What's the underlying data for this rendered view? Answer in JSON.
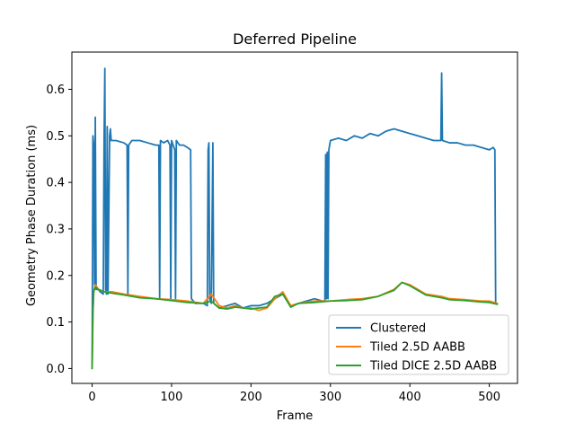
{
  "chart_data": {
    "type": "line",
    "title": "Deferred Pipeline",
    "xlabel": "Frame",
    "ylabel": "Geometry Phase Duration (ms)",
    "xlim": [
      -25.5,
      535.5
    ],
    "ylim": [
      -0.032,
      0.68
    ],
    "xticks": [
      0,
      100,
      200,
      300,
      400,
      500
    ],
    "yticks": [
      0.0,
      0.1,
      0.2,
      0.3,
      0.4,
      0.5,
      0.6
    ],
    "xtick_labels": [
      "0",
      "100",
      "200",
      "300",
      "400",
      "500"
    ],
    "ytick_labels": [
      "0.0",
      "0.1",
      "0.2",
      "0.3",
      "0.4",
      "0.5",
      "0.6"
    ],
    "grid": false,
    "legend_position": "lower right",
    "colors": {
      "Clustered": "#1f77b4",
      "Tiled 2.5D AABB": "#ff7f0e",
      "Tiled DICE 2.5D AABB": "#2ca02c"
    },
    "series": [
      {
        "name": "Clustered",
        "points": [
          [
            0,
            0.0
          ],
          [
            1,
            0.5
          ],
          [
            2,
            0.48
          ],
          [
            3,
            0.18
          ],
          [
            4,
            0.54
          ],
          [
            5,
            0.17
          ],
          [
            8,
            0.17
          ],
          [
            10,
            0.165
          ],
          [
            14,
            0.16
          ],
          [
            15,
            0.48
          ],
          [
            16,
            0.645
          ],
          [
            17,
            0.17
          ],
          [
            18,
            0.16
          ],
          [
            19,
            0.52
          ],
          [
            20,
            0.16
          ],
          [
            22,
            0.5
          ],
          [
            23,
            0.515
          ],
          [
            24,
            0.49
          ],
          [
            30,
            0.49
          ],
          [
            40,
            0.485
          ],
          [
            44,
            0.48
          ],
          [
            45,
            0.16
          ],
          [
            46,
            0.48
          ],
          [
            50,
            0.49
          ],
          [
            60,
            0.49
          ],
          [
            70,
            0.485
          ],
          [
            80,
            0.48
          ],
          [
            84,
            0.48
          ],
          [
            85,
            0.15
          ],
          [
            86,
            0.49
          ],
          [
            90,
            0.485
          ],
          [
            95,
            0.49
          ],
          [
            98,
            0.48
          ],
          [
            99,
            0.15
          ],
          [
            100,
            0.49
          ],
          [
            104,
            0.47
          ],
          [
            105,
            0.15
          ],
          [
            106,
            0.49
          ],
          [
            110,
            0.48
          ],
          [
            115,
            0.48
          ],
          [
            120,
            0.475
          ],
          [
            124,
            0.47
          ],
          [
            125,
            0.15
          ],
          [
            130,
            0.14
          ],
          [
            140,
            0.14
          ],
          [
            145,
            0.135
          ],
          [
            146,
            0.47
          ],
          [
            147,
            0.485
          ],
          [
            148,
            0.15
          ],
          [
            150,
            0.14
          ],
          [
            152,
            0.485
          ],
          [
            153,
            0.14
          ],
          [
            160,
            0.13
          ],
          [
            170,
            0.135
          ],
          [
            180,
            0.14
          ],
          [
            190,
            0.13
          ],
          [
            200,
            0.135
          ],
          [
            210,
            0.135
          ],
          [
            220,
            0.14
          ],
          [
            230,
            0.15
          ],
          [
            240,
            0.16
          ],
          [
            250,
            0.135
          ],
          [
            260,
            0.14
          ],
          [
            270,
            0.145
          ],
          [
            280,
            0.15
          ],
          [
            290,
            0.145
          ],
          [
            293,
            0.145
          ],
          [
            294,
            0.46
          ],
          [
            295,
            0.15
          ],
          [
            296,
            0.465
          ],
          [
            297,
            0.15
          ],
          [
            298,
            0.47
          ],
          [
            300,
            0.49
          ],
          [
            310,
            0.495
          ],
          [
            320,
            0.49
          ],
          [
            330,
            0.5
          ],
          [
            340,
            0.495
          ],
          [
            350,
            0.505
          ],
          [
            360,
            0.5
          ],
          [
            370,
            0.51
          ],
          [
            380,
            0.515
          ],
          [
            390,
            0.51
          ],
          [
            400,
            0.505
          ],
          [
            410,
            0.5
          ],
          [
            420,
            0.495
          ],
          [
            430,
            0.49
          ],
          [
            439,
            0.49
          ],
          [
            440,
            0.635
          ],
          [
            441,
            0.49
          ],
          [
            450,
            0.485
          ],
          [
            460,
            0.485
          ],
          [
            470,
            0.48
          ],
          [
            480,
            0.48
          ],
          [
            490,
            0.475
          ],
          [
            500,
            0.47
          ],
          [
            505,
            0.475
          ],
          [
            507,
            0.47
          ],
          [
            508,
            0.14
          ],
          [
            510,
            0.14
          ]
        ]
      },
      {
        "name": "Tiled 2.5D AABB",
        "points": [
          [
            0,
            0.0
          ],
          [
            1,
            0.12
          ],
          [
            2,
            0.165
          ],
          [
            4,
            0.18
          ],
          [
            8,
            0.17
          ],
          [
            15,
            0.165
          ],
          [
            25,
            0.165
          ],
          [
            40,
            0.16
          ],
          [
            60,
            0.155
          ],
          [
            80,
            0.15
          ],
          [
            100,
            0.148
          ],
          [
            120,
            0.145
          ],
          [
            140,
            0.14
          ],
          [
            150,
            0.16
          ],
          [
            160,
            0.135
          ],
          [
            170,
            0.13
          ],
          [
            180,
            0.135
          ],
          [
            190,
            0.13
          ],
          [
            200,
            0.13
          ],
          [
            210,
            0.125
          ],
          [
            220,
            0.13
          ],
          [
            230,
            0.15
          ],
          [
            240,
            0.165
          ],
          [
            250,
            0.135
          ],
          [
            260,
            0.14
          ],
          [
            280,
            0.145
          ],
          [
            300,
            0.145
          ],
          [
            320,
            0.148
          ],
          [
            340,
            0.15
          ],
          [
            360,
            0.155
          ],
          [
            380,
            0.17
          ],
          [
            390,
            0.185
          ],
          [
            400,
            0.18
          ],
          [
            410,
            0.17
          ],
          [
            420,
            0.16
          ],
          [
            440,
            0.155
          ],
          [
            450,
            0.15
          ],
          [
            470,
            0.148
          ],
          [
            490,
            0.145
          ],
          [
            500,
            0.145
          ],
          [
            510,
            0.14
          ]
        ]
      },
      {
        "name": "Tiled DICE 2.5D AABB",
        "points": [
          [
            0,
            0.0
          ],
          [
            1,
            0.12
          ],
          [
            2,
            0.165
          ],
          [
            4,
            0.175
          ],
          [
            8,
            0.17
          ],
          [
            15,
            0.165
          ],
          [
            25,
            0.162
          ],
          [
            40,
            0.158
          ],
          [
            60,
            0.152
          ],
          [
            80,
            0.15
          ],
          [
            100,
            0.146
          ],
          [
            120,
            0.142
          ],
          [
            140,
            0.14
          ],
          [
            150,
            0.145
          ],
          [
            160,
            0.13
          ],
          [
            170,
            0.128
          ],
          [
            180,
            0.132
          ],
          [
            190,
            0.13
          ],
          [
            200,
            0.128
          ],
          [
            210,
            0.13
          ],
          [
            220,
            0.132
          ],
          [
            230,
            0.155
          ],
          [
            240,
            0.16
          ],
          [
            250,
            0.132
          ],
          [
            260,
            0.14
          ],
          [
            280,
            0.142
          ],
          [
            300,
            0.145
          ],
          [
            320,
            0.146
          ],
          [
            340,
            0.148
          ],
          [
            360,
            0.155
          ],
          [
            380,
            0.168
          ],
          [
            390,
            0.185
          ],
          [
            400,
            0.178
          ],
          [
            410,
            0.168
          ],
          [
            420,
            0.158
          ],
          [
            440,
            0.152
          ],
          [
            450,
            0.148
          ],
          [
            470,
            0.146
          ],
          [
            490,
            0.143
          ],
          [
            500,
            0.142
          ],
          [
            510,
            0.138
          ]
        ]
      }
    ]
  }
}
